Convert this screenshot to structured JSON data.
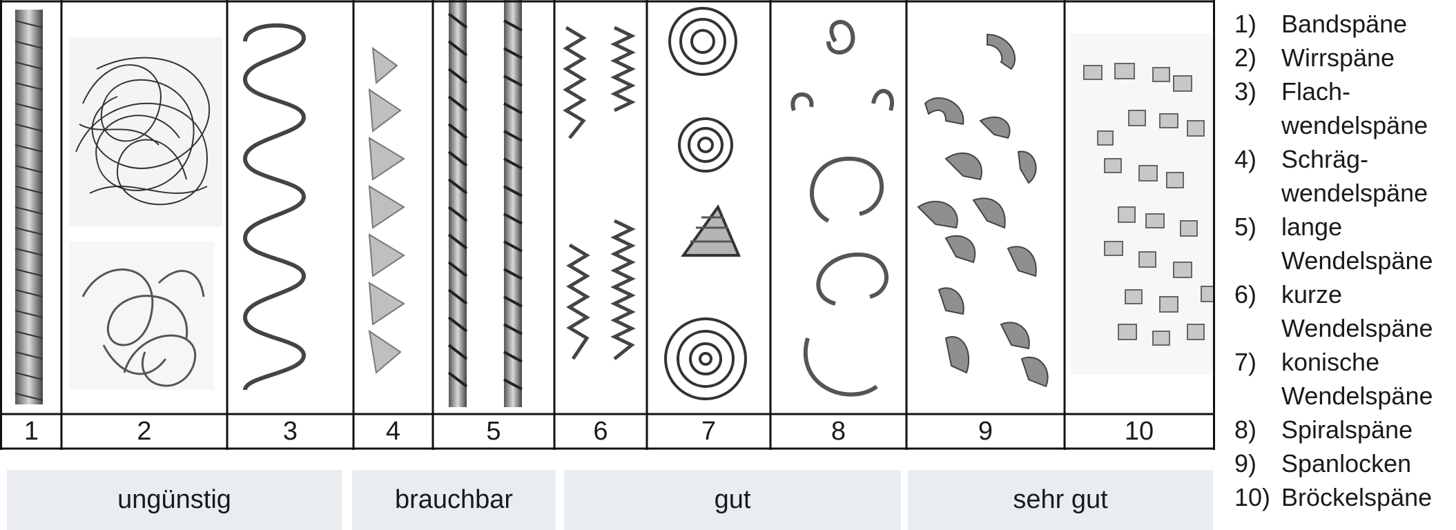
{
  "columns": [
    "1",
    "2",
    "3",
    "4",
    "5",
    "6",
    "7",
    "8",
    "9",
    "10"
  ],
  "ratings": [
    "ungünstig",
    "brauchbar",
    "gut",
    "sehr gut"
  ],
  "legend": [
    {
      "num": "1)",
      "lines": [
        "Bandspäne"
      ]
    },
    {
      "num": "2)",
      "lines": [
        "Wirrspäne"
      ]
    },
    {
      "num": "3)",
      "lines": [
        "Flach-",
        "wendelspäne"
      ]
    },
    {
      "num": "4)",
      "lines": [
        "Schräg-",
        "wendelspäne"
      ]
    },
    {
      "num": "5)",
      "lines": [
        "lange",
        "Wendelspäne"
      ]
    },
    {
      "num": "6)",
      "lines": [
        "kurze",
        "Wendelspäne"
      ]
    },
    {
      "num": "7)",
      "lines": [
        "konische",
        "Wendelspäne"
      ]
    },
    {
      "num": "8)",
      "lines": [
        "Spiralspäne"
      ]
    },
    {
      "num": "9)",
      "lines": [
        "Spanlocken"
      ]
    },
    {
      "num": "10)",
      "lines": [
        "Bröckelspäne"
      ]
    }
  ]
}
